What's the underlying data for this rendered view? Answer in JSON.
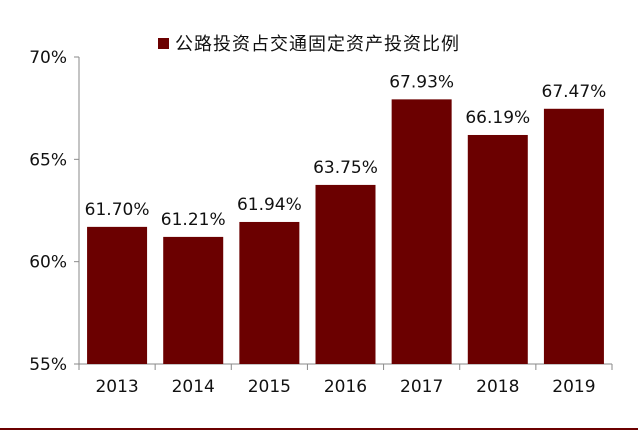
{
  "chart_data": {
    "type": "bar",
    "title": "",
    "legend": [
      "公路投资占交通固定资产投资比例"
    ],
    "series": [
      {
        "name": "公路投资占交通固定资产投资比例",
        "color": "#6b0000",
        "values": [
          61.7,
          61.21,
          61.94,
          63.75,
          67.93,
          66.19,
          67.47
        ],
        "value_labels": [
          "61.70%",
          "61.21%",
          "61.94%",
          "63.75%",
          "67.93%",
          "66.19%",
          "67.47%"
        ]
      }
    ],
    "categories": [
      "2013",
      "2014",
      "2015",
      "2016",
      "2017",
      "2018",
      "2019"
    ],
    "xlabel": "",
    "ylabel": "",
    "ylim": [
      55,
      70
    ],
    "yticks": [
      55,
      60,
      65,
      70
    ],
    "ytick_labels": [
      "55%",
      "60%",
      "65%",
      "70%"
    ],
    "grid": false,
    "legend_position": "top-center"
  }
}
